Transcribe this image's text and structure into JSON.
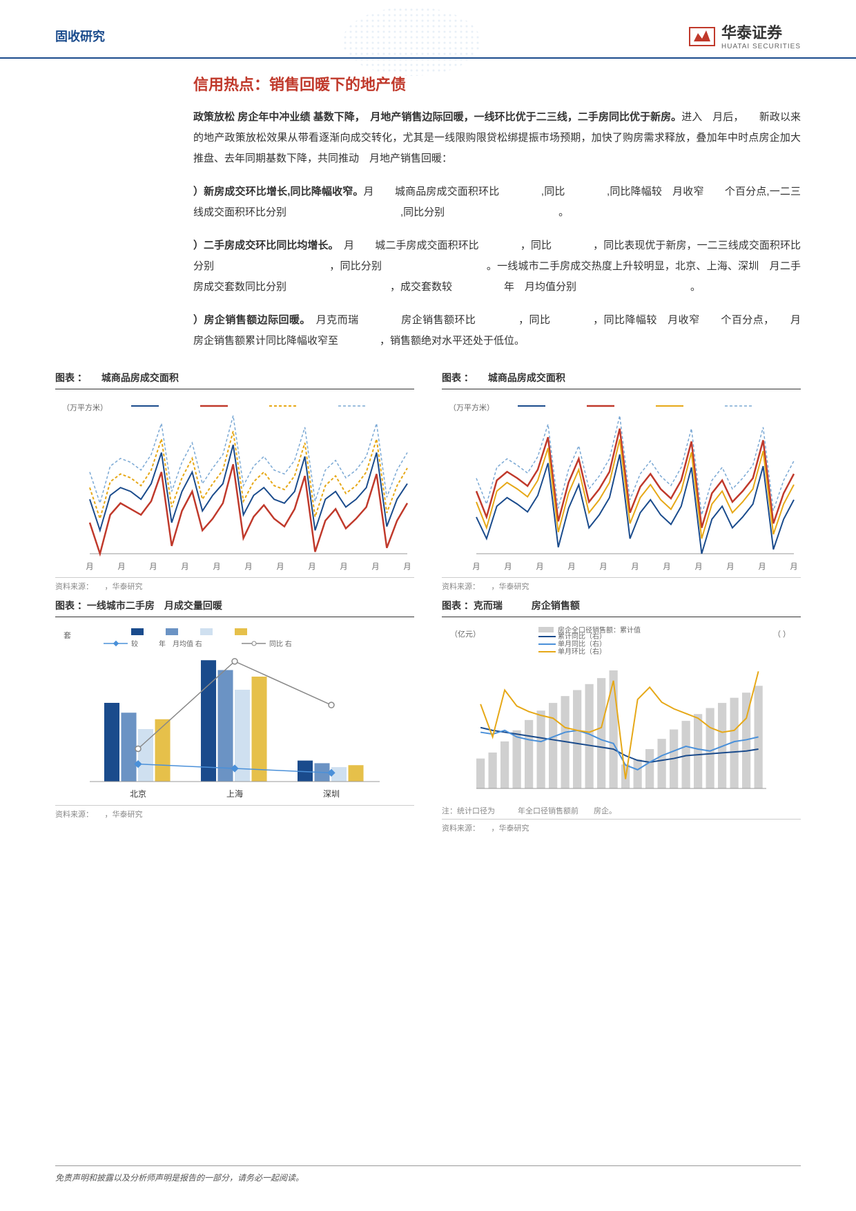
{
  "header": {
    "category": "固收研究",
    "company_cn": "华泰证券",
    "company_en": "HUATAI SECURITIES"
  },
  "section_title": "信用热点：销售回暖下的地产债",
  "paragraphs": {
    "p1_bold": "政策放松 房企年中冲业绩 基数下降，　月地产销售边际回暖，一线环比优于二三线，二手房同比优于新房。",
    "p1_rest": "进入　月后，　　新政以来的地产政策放松效果从带看逐渐向成交转化，尤其是一线限购限贷松绑提振市场预期，加快了购房需求释放，叠加年中时点房企加大推盘、去年同期基数下降，共同推动　月地产销售回暖：",
    "p2_bold": "）新房成交环比增长,同比降幅收窄。",
    "p2_rest": "月　　城商品房成交面积环比　　　　,同比　　　　,同比降幅较　月收窄　　个百分点,一二三线成交面积环比分别　　　　　　　　　　　,同比分别　　　　　　　　　　　。",
    "p3_bold": "）二手房成交环比同比均增长。",
    "p3_rest": "　月　　城二手房成交面积环比　　　　，同比　　　　，同比表现优于新房，一二三线成交面积环比分别　　　　　　　　　　　，同比分别　　　　　　　　　　。一线城市二手房成交热度上升较明显，北京、上海、深圳　月二手房成交套数同比分别　　　　　　　　　　，成交套数较　　　　　年　月均值分别　　　　　　　　　　　。",
    "p4_bold": "）房企销售额边际回暖。",
    "p4_rest": "　月克而瑞　　　　房企销售额环比　　　　，同比　　　　，同比降幅较　月收窄　　个百分点，　　月　　　　房企销售额累计同比降幅收窄至　　　　，销售额绝对水平还处于低位。"
  },
  "charts": {
    "c1": {
      "title": "图表 ：　　城商品房成交面积",
      "ylabel": "（万平方米）",
      "source": "资料来源：　　，华泰研究",
      "type": "line",
      "xlabels": [
        "月",
        "月",
        "月",
        "月",
        "月",
        "月",
        "月",
        "月",
        "月",
        "月",
        "月"
      ],
      "background_color": "#ffffff",
      "series": [
        {
          "color": "#1a4b8c",
          "width": 2,
          "dash": "none",
          "data": [
            280,
            200,
            290,
            310,
            300,
            280,
            320,
            400,
            220,
            300,
            350,
            250,
            290,
            320,
            420,
            240,
            290,
            310,
            280,
            270,
            300,
            390,
            200,
            280,
            300,
            260,
            280,
            310,
            400,
            210,
            280,
            320
          ]
        },
        {
          "color": "#c0392b",
          "width": 2.5,
          "dash": "none",
          "data": [
            220,
            140,
            240,
            270,
            255,
            240,
            275,
            350,
            160,
            250,
            300,
            200,
            230,
            270,
            370,
            180,
            235,
            265,
            230,
            210,
            255,
            340,
            145,
            225,
            255,
            205,
            230,
            260,
            345,
            155,
            225,
            270
          ]
        },
        {
          "color": "#e6a817",
          "width": 2,
          "dash": "4,3",
          "data": [
            310,
            230,
            325,
            345,
            335,
            315,
            355,
            435,
            260,
            335,
            385,
            280,
            320,
            355,
            455,
            275,
            325,
            350,
            315,
            305,
            340,
            425,
            235,
            315,
            340,
            295,
            315,
            350,
            435,
            245,
            315,
            360
          ]
        },
        {
          "color": "#7aa8d4",
          "width": 1.5,
          "dash": "4,3",
          "data": [
            350,
            270,
            365,
            385,
            375,
            355,
            395,
            475,
            300,
            375,
            425,
            320,
            360,
            395,
            495,
            315,
            365,
            390,
            355,
            345,
            380,
            465,
            275,
            355,
            380,
            335,
            355,
            390,
            475,
            285,
            355,
            400
          ]
        }
      ]
    },
    "c2": {
      "title": "图表 ：　　城商品房成交面积",
      "ylabel": "（万平方米）",
      "source": "资料来源：　　，华泰研究",
      "type": "line",
      "xlabels": [
        "月",
        "月",
        "月",
        "月",
        "月",
        "月",
        "月",
        "月",
        "月",
        "月",
        "月"
      ],
      "series": [
        {
          "color": "#1a4b8c",
          "width": 2,
          "dash": "none",
          "data": [
            200,
            150,
            225,
            245,
            230,
            212,
            250,
            325,
            130,
            220,
            275,
            175,
            205,
            245,
            345,
            150,
            210,
            240,
            205,
            183,
            225,
            315,
            115,
            195,
            225,
            175,
            200,
            230,
            318,
            125,
            195,
            240
          ]
        },
        {
          "color": "#c0392b",
          "width": 2.5,
          "dash": "none",
          "data": [
            260,
            200,
            285,
            305,
            290,
            272,
            310,
            385,
            190,
            280,
            335,
            235,
            265,
            305,
            405,
            210,
            270,
            300,
            265,
            243,
            285,
            375,
            175,
            255,
            285,
            235,
            260,
            290,
            378,
            185,
            255,
            300
          ]
        },
        {
          "color": "#e6a817",
          "width": 2,
          "dash": "none",
          "data": [
            235,
            175,
            260,
            280,
            265,
            247,
            285,
            360,
            165,
            255,
            310,
            210,
            240,
            280,
            380,
            185,
            245,
            275,
            240,
            218,
            260,
            350,
            150,
            230,
            260,
            210,
            235,
            265,
            353,
            160,
            230,
            275
          ]
        },
        {
          "color": "#7aa8d4",
          "width": 1.5,
          "dash": "4,3",
          "data": [
            290,
            230,
            315,
            335,
            320,
            302,
            340,
            415,
            220,
            310,
            365,
            265,
            295,
            335,
            435,
            240,
            300,
            330,
            295,
            273,
            315,
            405,
            205,
            285,
            315,
            265,
            290,
            320,
            408,
            215,
            285,
            330
          ]
        }
      ]
    },
    "c3": {
      "title": "图表 ：一线城市二手房　月成交量回暖",
      "source": "资料来源：　　，华泰研究",
      "type": "grouped_bar_line",
      "ylabel": "套",
      "categories": [
        "北京",
        "上海",
        "深圳"
      ],
      "legend": [
        "",
        "",
        "",
        "较　　　年　月均值 右",
        "同比 右"
      ],
      "bars": [
        {
          "color": "#1a4b8c",
          "values": [
            12000,
            18500,
            3200
          ]
        },
        {
          "color": "#6b93c4",
          "values": [
            10500,
            17000,
            2800
          ]
        },
        {
          "color": "#cfe0f0",
          "values": [
            8000,
            14000,
            2200
          ]
        },
        {
          "color": "#e6c04a",
          "values": [
            9500,
            16000,
            2500
          ]
        }
      ],
      "lines": [
        {
          "color": "#4a90d9",
          "marker": "diamond",
          "values": [
            8,
            6,
            4
          ]
        },
        {
          "color": "#888888",
          "marker": "circle",
          "values": [
            15,
            55,
            35
          ]
        }
      ],
      "ymax": 20000
    },
    "c4": {
      "title": "图表 ：克而瑞　　　房企销售额",
      "note": "注：统计口径为　　　年全口径销售额前　　房企。",
      "source": "资料来源：　　，华泰研究",
      "type": "bar_line",
      "ylabel_left": "（亿元）",
      "ylabel_right": "（ ）",
      "legend": [
        "房企全口径销售额：累计值",
        "累计同比（右）",
        "单月同比（右）",
        "单月环比（右）"
      ],
      "bar_color": "#d0d0d0",
      "bars": [
        3500,
        4200,
        5500,
        6800,
        8000,
        9100,
        10000,
        10800,
        11500,
        12200,
        12900,
        13800,
        2800,
        3400,
        4600,
        5800,
        6900,
        7900,
        8700,
        9400,
        10000,
        10600,
        11200,
        12000
      ],
      "lines": [
        {
          "color": "#1a4b8c",
          "width": 2,
          "data": [
            -5,
            -8,
            -10,
            -12,
            -14,
            -16,
            -18,
            -20,
            -22,
            -24,
            -26,
            -28,
            -35,
            -40,
            -42,
            -40,
            -38,
            -35,
            -34,
            -33,
            -32,
            -31,
            -30,
            -28
          ]
        },
        {
          "color": "#4a90d9",
          "width": 2,
          "data": [
            -10,
            -12,
            -8,
            -15,
            -18,
            -20,
            -15,
            -10,
            -8,
            -12,
            -18,
            -22,
            -45,
            -50,
            -42,
            -35,
            -30,
            -25,
            -28,
            -30,
            -25,
            -20,
            -18,
            -15
          ]
        },
        {
          "color": "#e6a817",
          "width": 2,
          "data": [
            20,
            -15,
            35,
            18,
            12,
            8,
            5,
            -5,
            -8,
            -10,
            -5,
            45,
            -60,
            25,
            38,
            22,
            15,
            10,
            5,
            -5,
            -10,
            -8,
            5,
            55
          ]
        }
      ]
    }
  },
  "footer": "免责声明和披露以及分析师声明是报告的一部分，请务必一起阅读。",
  "colors": {
    "brand_blue": "#1a4b8c",
    "brand_red": "#c0392b",
    "accent_yellow": "#e6a817",
    "light_blue": "#7aa8d4",
    "grid": "#e5e5e5"
  }
}
